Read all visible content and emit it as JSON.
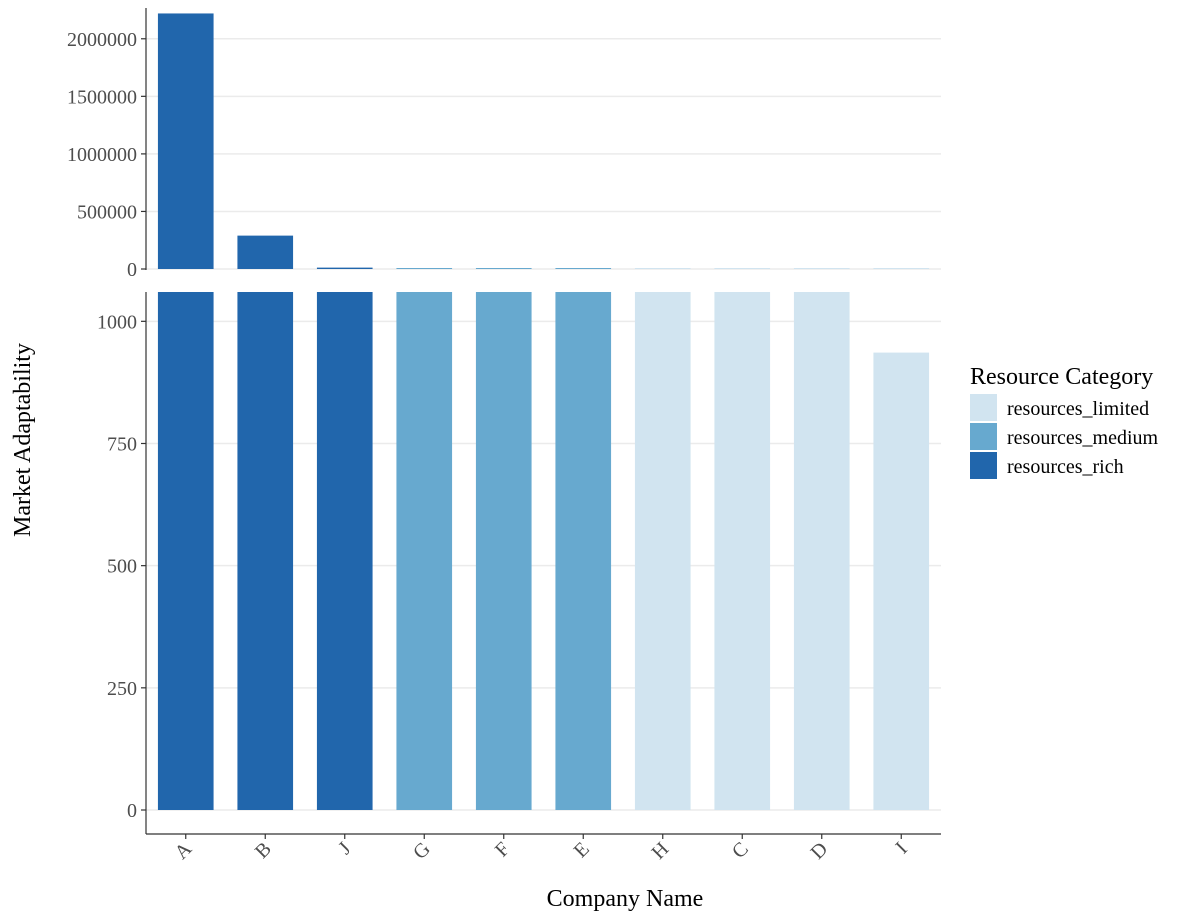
{
  "chart_data": {
    "type": "bar",
    "layout": "broken-axis",
    "xlabel": "Company Name",
    "ylabel": "Market Adaptability",
    "categories": [
      "A",
      "B",
      "J",
      "G",
      "F",
      "E",
      "H",
      "C",
      "D",
      "I"
    ],
    "values": [
      2220000,
      290000,
      12000,
      8000,
      7000,
      6000,
      4000,
      3000,
      2000,
      936
    ],
    "groups": [
      "resources_rich",
      "resources_rich",
      "resources_rich",
      "resources_medium",
      "resources_medium",
      "resources_medium",
      "resources_limited",
      "resources_limited",
      "resources_limited",
      "resources_limited"
    ],
    "upper_panel": {
      "ylim": [
        0,
        2250000
      ],
      "ticks": [
        0,
        500000,
        1000000,
        1500000,
        2000000
      ],
      "tick_labels": [
        "0",
        "500000",
        "1000000",
        "1500000",
        "2000000"
      ]
    },
    "lower_panel": {
      "ylim": [
        0,
        1060
      ],
      "ticks": [
        0,
        250,
        500,
        750,
        1000
      ],
      "tick_labels": [
        "0",
        "250",
        "500",
        "750",
        "1000"
      ]
    },
    "legend": {
      "title": "Resource Category",
      "position": "right",
      "entries": [
        {
          "key": "resources_limited",
          "label": "resources_limited",
          "color": "#d1e4f0"
        },
        {
          "key": "resources_medium",
          "label": "resources_medium",
          "color": "#67a9cf"
        },
        {
          "key": "resources_rich",
          "label": "resources_rich",
          "color": "#2166ac"
        }
      ]
    },
    "grid": "horizontal",
    "x_tick_rotation": "45 degrees"
  }
}
